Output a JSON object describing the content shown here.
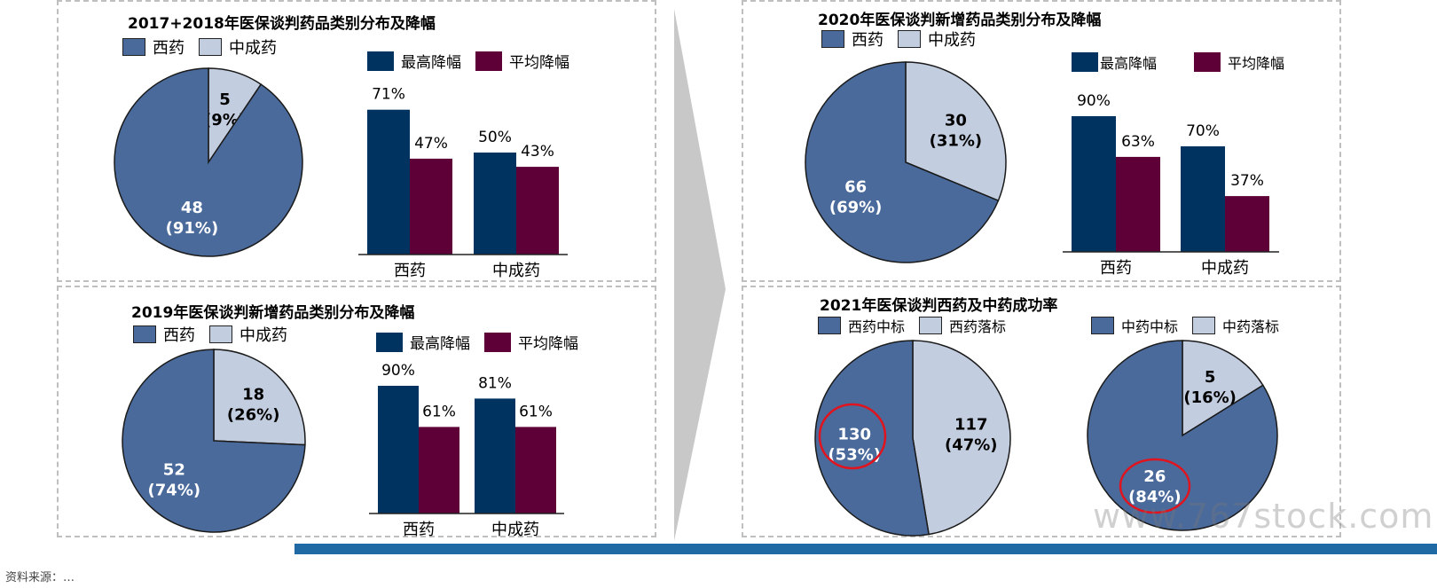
{
  "colors": {
    "dark_blue": "#00335f",
    "maroon": "#5e0037",
    "pie_dark": "#4a6a9b",
    "pie_light": "#c3cde0"
  },
  "panels": [
    {
      "title": "2017+2018年医保谈判药品类别分布及降幅",
      "pie_legend": [
        "西药",
        "中成药"
      ],
      "bar_legend": [
        "最高降幅",
        "平均降幅"
      ]
    },
    {
      "title": "2019年医保谈判新增药品类别分布及降幅",
      "pie_legend": [
        "西药",
        "中成药"
      ],
      "bar_legend": [
        "最高降幅",
        "平均降幅"
      ]
    },
    {
      "title": "2020年医保谈判新增药品类别分布及降幅",
      "pie_legend": [
        "西药",
        "中成药"
      ],
      "bar_legend": [
        "最高降幅",
        "平均降幅"
      ]
    },
    {
      "title": "2021年医保谈判西药及中药成功率",
      "pie_legend_left": [
        "西药中标",
        "西药落标"
      ],
      "pie_legend_right": [
        "中药中标",
        "中药落标"
      ]
    }
  ],
  "chart_data": [
    {
      "type": "pie",
      "id": "p1",
      "slices": [
        {
          "label": "中成药",
          "value": 5,
          "pct": "9%"
        },
        {
          "label": "西药",
          "value": 48,
          "pct": "91%"
        }
      ]
    },
    {
      "type": "bar",
      "id": "b1",
      "categories": [
        "西药",
        "中成药"
      ],
      "series": [
        {
          "name": "最高降幅",
          "values": [
            71,
            50
          ]
        },
        {
          "name": "平均降幅",
          "values": [
            47,
            43
          ]
        }
      ],
      "ylim": [
        0,
        100
      ]
    },
    {
      "type": "pie",
      "id": "p2",
      "slices": [
        {
          "label": "中成药",
          "value": 18,
          "pct": "26%"
        },
        {
          "label": "西药",
          "value": 52,
          "pct": "74%"
        }
      ]
    },
    {
      "type": "bar",
      "id": "b2",
      "categories": [
        "西药",
        "中成药"
      ],
      "series": [
        {
          "name": "最高降幅",
          "values": [
            90,
            81
          ]
        },
        {
          "name": "平均降幅",
          "values": [
            61,
            61
          ]
        }
      ],
      "ylim": [
        0,
        100
      ]
    },
    {
      "type": "pie",
      "id": "p3",
      "slices": [
        {
          "label": "中成药",
          "value": 30,
          "pct": "31%"
        },
        {
          "label": "西药",
          "value": 66,
          "pct": "69%"
        }
      ]
    },
    {
      "type": "bar",
      "id": "b3",
      "categories": [
        "西药",
        "中成药"
      ],
      "series": [
        {
          "name": "最高降幅",
          "values": [
            90,
            70
          ]
        },
        {
          "name": "平均降幅",
          "values": [
            63,
            37
          ]
        }
      ],
      "ylim": [
        0,
        100
      ]
    },
    {
      "type": "pie",
      "id": "p4",
      "slices": [
        {
          "label": "西药落标",
          "value": 117,
          "pct": "47%"
        },
        {
          "label": "西药中标",
          "value": 130,
          "pct": "53%"
        }
      ]
    },
    {
      "type": "pie",
      "id": "p5",
      "slices": [
        {
          "label": "中药落标",
          "value": 5,
          "pct": "16%"
        },
        {
          "label": "中药中标",
          "value": 26,
          "pct": "84%"
        }
      ]
    }
  ],
  "watermark": "www.767stock.com",
  "footnote": "资料来源：…"
}
